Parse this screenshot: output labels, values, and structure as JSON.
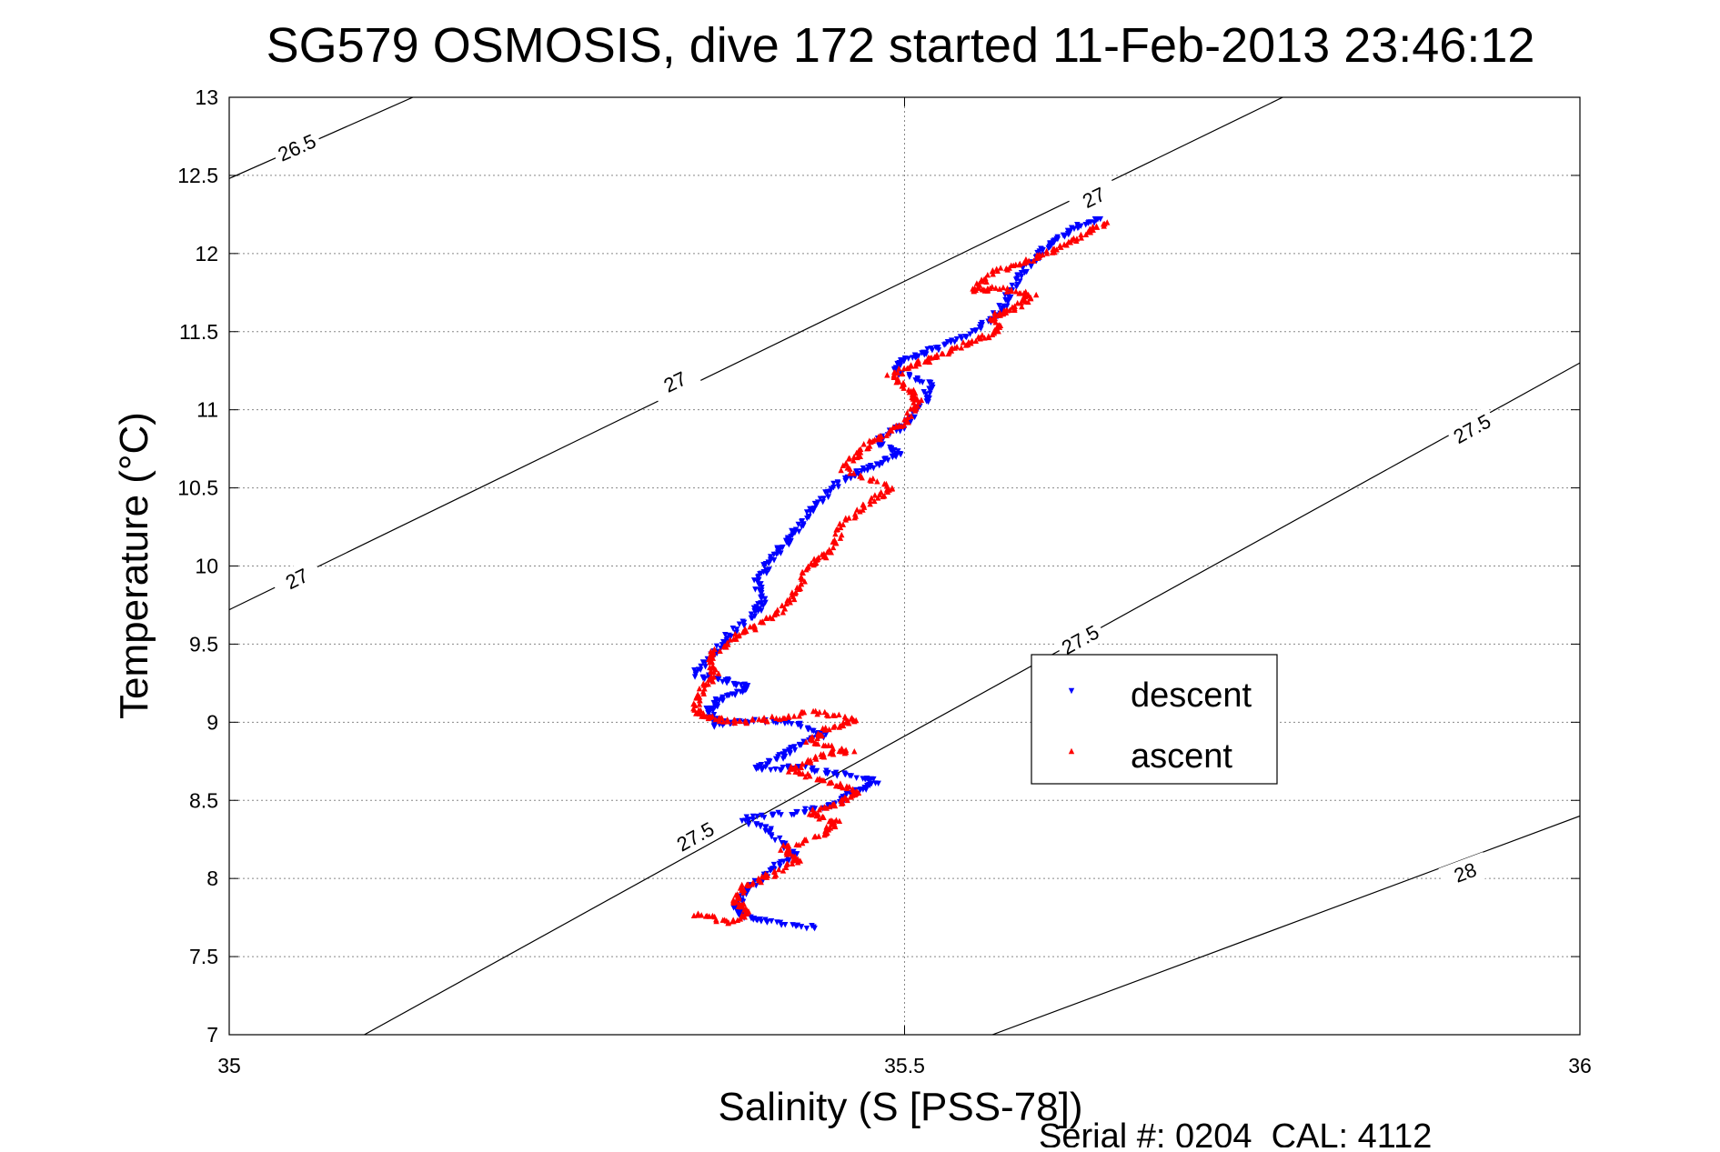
{
  "chart_data": {
    "type": "scatter",
    "title": "SG579 OSMOSIS, dive 172 started 11-Feb-2013 23:46:12",
    "xlabel": "Salinity (S [PSS-78])",
    "ylabel": "Temperature (°C)",
    "xlim": [
      35,
      36
    ],
    "ylim": [
      7,
      13
    ],
    "xticks": [
      35,
      35.5,
      36
    ],
    "xtick_labels": [
      "35",
      "35.5",
      "36"
    ],
    "yticks": [
      7,
      7.5,
      8,
      8.5,
      9,
      9.5,
      10,
      10.5,
      11,
      11.5,
      12,
      12.5,
      13
    ],
    "ytick_labels": [
      "7",
      "7.5",
      "8",
      "8.5",
      "9",
      "9.5",
      "10",
      "10.5",
      "11",
      "11.5",
      "12",
      "12.5",
      "13"
    ],
    "grid": true,
    "legend_position": "right",
    "footer": "Serial #: 0204  CAL: 4112",
    "colors": {
      "descent": "#0000ff",
      "ascent": "#ff0000",
      "contour": "#000000",
      "grid": "#888888"
    },
    "contours": [
      {
        "level": 26.5,
        "points": [
          [
            35.0,
            12.48
          ],
          [
            35.136,
            13.0
          ]
        ],
        "labels": [
          {
            "text": "26.5",
            "x": 35.05,
            "y": 12.68
          }
        ]
      },
      {
        "level": 27,
        "points": [
          [
            35.0,
            9.72
          ],
          [
            35.78,
            13.0
          ]
        ],
        "labels": [
          {
            "text": "27",
            "x": 35.05,
            "y": 9.92
          },
          {
            "text": "27",
            "x": 35.33,
            "y": 11.18
          },
          {
            "text": "27",
            "x": 35.64,
            "y": 12.36
          }
        ]
      },
      {
        "level": 27.5,
        "points": [
          [
            35.1,
            7.0
          ],
          [
            36.0,
            11.3
          ]
        ],
        "labels": [
          {
            "text": "27.5",
            "x": 35.345,
            "y": 8.27
          },
          {
            "text": "27.5",
            "x": 35.63,
            "y": 9.53
          },
          {
            "text": "27.5",
            "x": 35.92,
            "y": 10.88
          }
        ]
      },
      {
        "level": 28,
        "points": [
          [
            35.565,
            7.0
          ],
          [
            36.0,
            8.4
          ]
        ],
        "labels": [
          {
            "text": "28",
            "x": 35.915,
            "y": 8.04
          }
        ]
      }
    ],
    "series": [
      {
        "name": "descent",
        "marker": "down-triangle",
        "path": [
          [
            35.436,
            7.68
          ],
          [
            35.4,
            7.72
          ],
          [
            35.38,
            7.76
          ],
          [
            35.375,
            7.83
          ],
          [
            35.385,
            7.93
          ],
          [
            35.4,
            8.05
          ],
          [
            35.42,
            8.15
          ],
          [
            35.4,
            8.3
          ],
          [
            35.38,
            8.38
          ],
          [
            35.42,
            8.42
          ],
          [
            35.45,
            8.47
          ],
          [
            35.46,
            8.55
          ],
          [
            35.48,
            8.62
          ],
          [
            35.45,
            8.67
          ],
          [
            35.42,
            8.71
          ],
          [
            35.39,
            8.7
          ],
          [
            35.41,
            8.78
          ],
          [
            35.42,
            8.85
          ],
          [
            35.44,
            8.92
          ],
          [
            35.42,
            9.0
          ],
          [
            35.38,
            9.01
          ],
          [
            35.36,
            8.98
          ],
          [
            35.355,
            9.08
          ],
          [
            35.365,
            9.15
          ],
          [
            35.385,
            9.22
          ],
          [
            35.37,
            9.26
          ],
          [
            35.345,
            9.3
          ],
          [
            35.36,
            9.45
          ],
          [
            35.37,
            9.55
          ],
          [
            35.39,
            9.7
          ],
          [
            35.395,
            9.78
          ],
          [
            35.39,
            9.9
          ],
          [
            35.4,
            10.02
          ],
          [
            35.41,
            10.12
          ],
          [
            35.42,
            10.22
          ],
          [
            35.43,
            10.35
          ],
          [
            35.445,
            10.48
          ],
          [
            35.46,
            10.58
          ],
          [
            35.48,
            10.65
          ],
          [
            35.495,
            10.72
          ],
          [
            35.48,
            10.8
          ],
          [
            35.5,
            10.9
          ],
          [
            35.515,
            11.05
          ],
          [
            35.52,
            11.17
          ],
          [
            35.49,
            11.25
          ],
          [
            35.5,
            11.32
          ],
          [
            35.52,
            11.38
          ],
          [
            35.545,
            11.47
          ],
          [
            35.565,
            11.58
          ],
          [
            35.575,
            11.68
          ],
          [
            35.58,
            11.78
          ],
          [
            35.59,
            11.9
          ],
          [
            35.6,
            12.0
          ],
          [
            35.61,
            12.08
          ],
          [
            35.625,
            12.16
          ],
          [
            35.645,
            12.22
          ]
        ]
      },
      {
        "name": "ascent",
        "marker": "up-triangle",
        "path": [
          [
            35.345,
            7.78
          ],
          [
            35.37,
            7.72
          ],
          [
            35.385,
            7.79
          ],
          [
            35.375,
            7.85
          ],
          [
            35.38,
            7.95
          ],
          [
            35.4,
            8.02
          ],
          [
            35.42,
            8.12
          ],
          [
            35.41,
            8.2
          ],
          [
            35.44,
            8.28
          ],
          [
            35.45,
            8.36
          ],
          [
            35.43,
            8.42
          ],
          [
            35.455,
            8.5
          ],
          [
            35.465,
            8.57
          ],
          [
            35.44,
            8.62
          ],
          [
            35.415,
            8.7
          ],
          [
            35.435,
            8.78
          ],
          [
            35.46,
            8.82
          ],
          [
            35.43,
            8.87
          ],
          [
            35.44,
            8.95
          ],
          [
            35.465,
            9.02
          ],
          [
            35.43,
            9.07
          ],
          [
            35.4,
            9.02
          ],
          [
            35.375,
            9.0
          ],
          [
            35.355,
            9.03
          ],
          [
            35.345,
            9.08
          ],
          [
            35.35,
            9.2
          ],
          [
            35.36,
            9.32
          ],
          [
            35.355,
            9.42
          ],
          [
            35.375,
            9.55
          ],
          [
            35.39,
            9.62
          ],
          [
            35.41,
            9.72
          ],
          [
            35.42,
            9.85
          ],
          [
            35.43,
            10.0
          ],
          [
            35.445,
            10.1
          ],
          [
            35.455,
            10.28
          ],
          [
            35.475,
            10.42
          ],
          [
            35.49,
            10.5
          ],
          [
            35.455,
            10.62
          ],
          [
            35.465,
            10.72
          ],
          [
            35.48,
            10.82
          ],
          [
            35.5,
            10.92
          ],
          [
            35.51,
            11.05
          ],
          [
            35.505,
            11.12
          ],
          [
            35.49,
            11.22
          ],
          [
            35.51,
            11.3
          ],
          [
            35.53,
            11.36
          ],
          [
            35.55,
            11.44
          ],
          [
            35.57,
            11.5
          ],
          [
            35.565,
            11.6
          ],
          [
            35.58,
            11.65
          ],
          [
            35.595,
            11.73
          ],
          [
            35.57,
            11.78
          ],
          [
            35.55,
            11.76
          ],
          [
            35.565,
            11.88
          ],
          [
            35.59,
            11.95
          ],
          [
            35.61,
            12.02
          ],
          [
            35.63,
            12.12
          ],
          [
            35.65,
            12.2
          ]
        ]
      }
    ]
  }
}
